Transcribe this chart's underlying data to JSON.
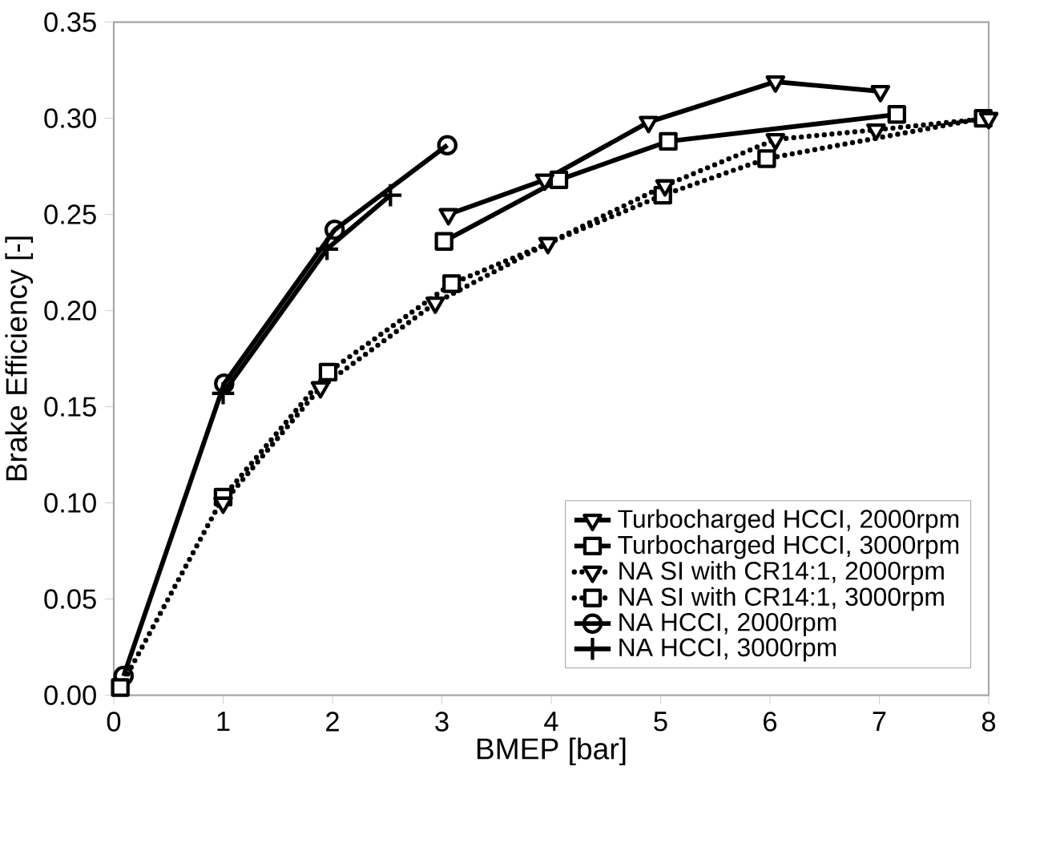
{
  "chart_data": {
    "type": "line",
    "xlabel": "BMEP [bar]",
    "ylabel": "Brake Efficiency [-]",
    "xlim": [
      0,
      8
    ],
    "ylim": [
      0,
      0.35
    ],
    "xticks": [
      0,
      1,
      2,
      3,
      4,
      5,
      6,
      7,
      8
    ],
    "yticks": [
      {
        "value": 0,
        "label": "0.00"
      },
      {
        "value": 0.05,
        "label": "0.05"
      },
      {
        "value": 0.1,
        "label": "0.10"
      },
      {
        "value": 0.15,
        "label": "0.15"
      },
      {
        "value": 0.2,
        "label": "0.20"
      },
      {
        "value": 0.25,
        "label": "0.25"
      },
      {
        "value": 0.3,
        "label": "0.30"
      },
      {
        "value": 0.35,
        "label": "0.35"
      }
    ],
    "grid": false,
    "legend": "bottom right",
    "series": [
      {
        "name": "Turbocharged HCCI, 2000rpm",
        "color": "#000000",
        "marker": "triangle",
        "line_style": "solid",
        "x": [
          3.06,
          3.94,
          4.89,
          6.05,
          7.01
        ],
        "values": [
          0.25,
          0.268,
          0.298,
          0.319,
          0.314
        ]
      },
      {
        "name": "Turbocharged HCCI, 3000rpm",
        "color": "#000000",
        "marker": "square",
        "line_style": "solid",
        "x": [
          3.02,
          4.07,
          5.07,
          7.16
        ],
        "values": [
          0.236,
          0.268,
          0.288,
          0.302
        ]
      },
      {
        "name": "NA SI with CR14:1, 2000rpm",
        "color": "#000000",
        "marker": "triangle",
        "line_style": "dotted",
        "x": [
          1,
          1.89,
          2.94,
          3.97,
          5.04,
          6.05,
          6.97,
          8
        ],
        "values": [
          0.1,
          0.16,
          0.204,
          0.235,
          0.265,
          0.289,
          0.294,
          0.3
        ]
      },
      {
        "name": "NA SI with CR14:1, 3000rpm",
        "color": "#000000",
        "marker": "square",
        "line_style": "dotted",
        "x": [
          0.06,
          1,
          1.96,
          3.09,
          5.02,
          5.97,
          7.95
        ],
        "values": [
          0.004,
          0.103,
          0.168,
          0.214,
          0.26,
          0.279,
          0.3
        ]
      },
      {
        "name": "NA HCCI, 2000rpm",
        "color": "#000000",
        "marker": "circle",
        "line_style": "solid",
        "x": [
          0.09,
          1.01,
          2.02,
          3.05
        ],
        "values": [
          0.01,
          0.162,
          0.242,
          0.286
        ]
      },
      {
        "name": "NA HCCI, 3000rpm",
        "color": "#000000",
        "marker": "cross",
        "line_style": "solid",
        "x": [
          1,
          1.95,
          2.53
        ],
        "values": [
          0.157,
          0.232,
          0.26
        ]
      }
    ]
  }
}
